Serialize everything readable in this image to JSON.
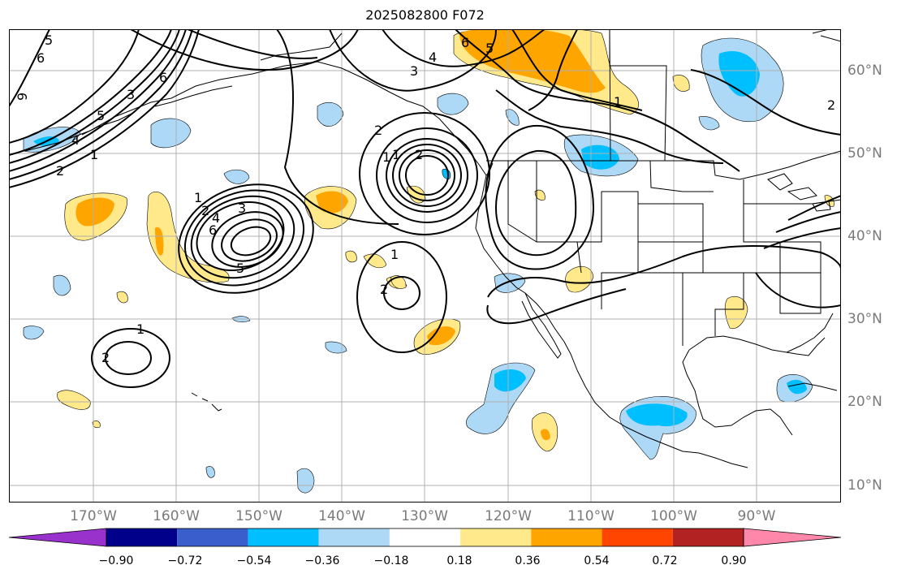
{
  "title": "2025082800 F072",
  "lon_labels": [
    "170°W",
    "160°W",
    "150°W",
    "140°W",
    "130°W",
    "120°W",
    "110°W",
    "100°W",
    "90°W"
  ],
  "lat_labels": [
    "60°N",
    "50°N",
    "40°N",
    "30°N",
    "20°N",
    "10°N"
  ],
  "colorbar": {
    "tick_labels": [
      "−0.90",
      "−0.72",
      "−0.54",
      "−0.36",
      "−0.18",
      "0.18",
      "0.36",
      "0.54",
      "0.72",
      "0.90"
    ],
    "colors": [
      "#9932cc",
      "#00008b",
      "#3a5fcd",
      "#00bfff",
      "#add8f6",
      "#ffffff",
      "#ffe98a",
      "#ffa500",
      "#ff4500",
      "#b22222",
      "#ff88aa"
    ]
  },
  "contour_labels": [
    "5",
    "6",
    "9",
    "1",
    "2",
    "3",
    "4",
    "5",
    "6",
    "1",
    "2",
    "3",
    "4",
    "5",
    "6",
    "1",
    "2",
    "1",
    "2",
    "1",
    "2",
    "6",
    "5",
    "4",
    "3",
    "1",
    "2",
    "1",
    "2"
  ],
  "colors": {
    "grid": "#b0b0b0",
    "coast": "#000000",
    "tick_text": "#7a7a7a"
  }
}
